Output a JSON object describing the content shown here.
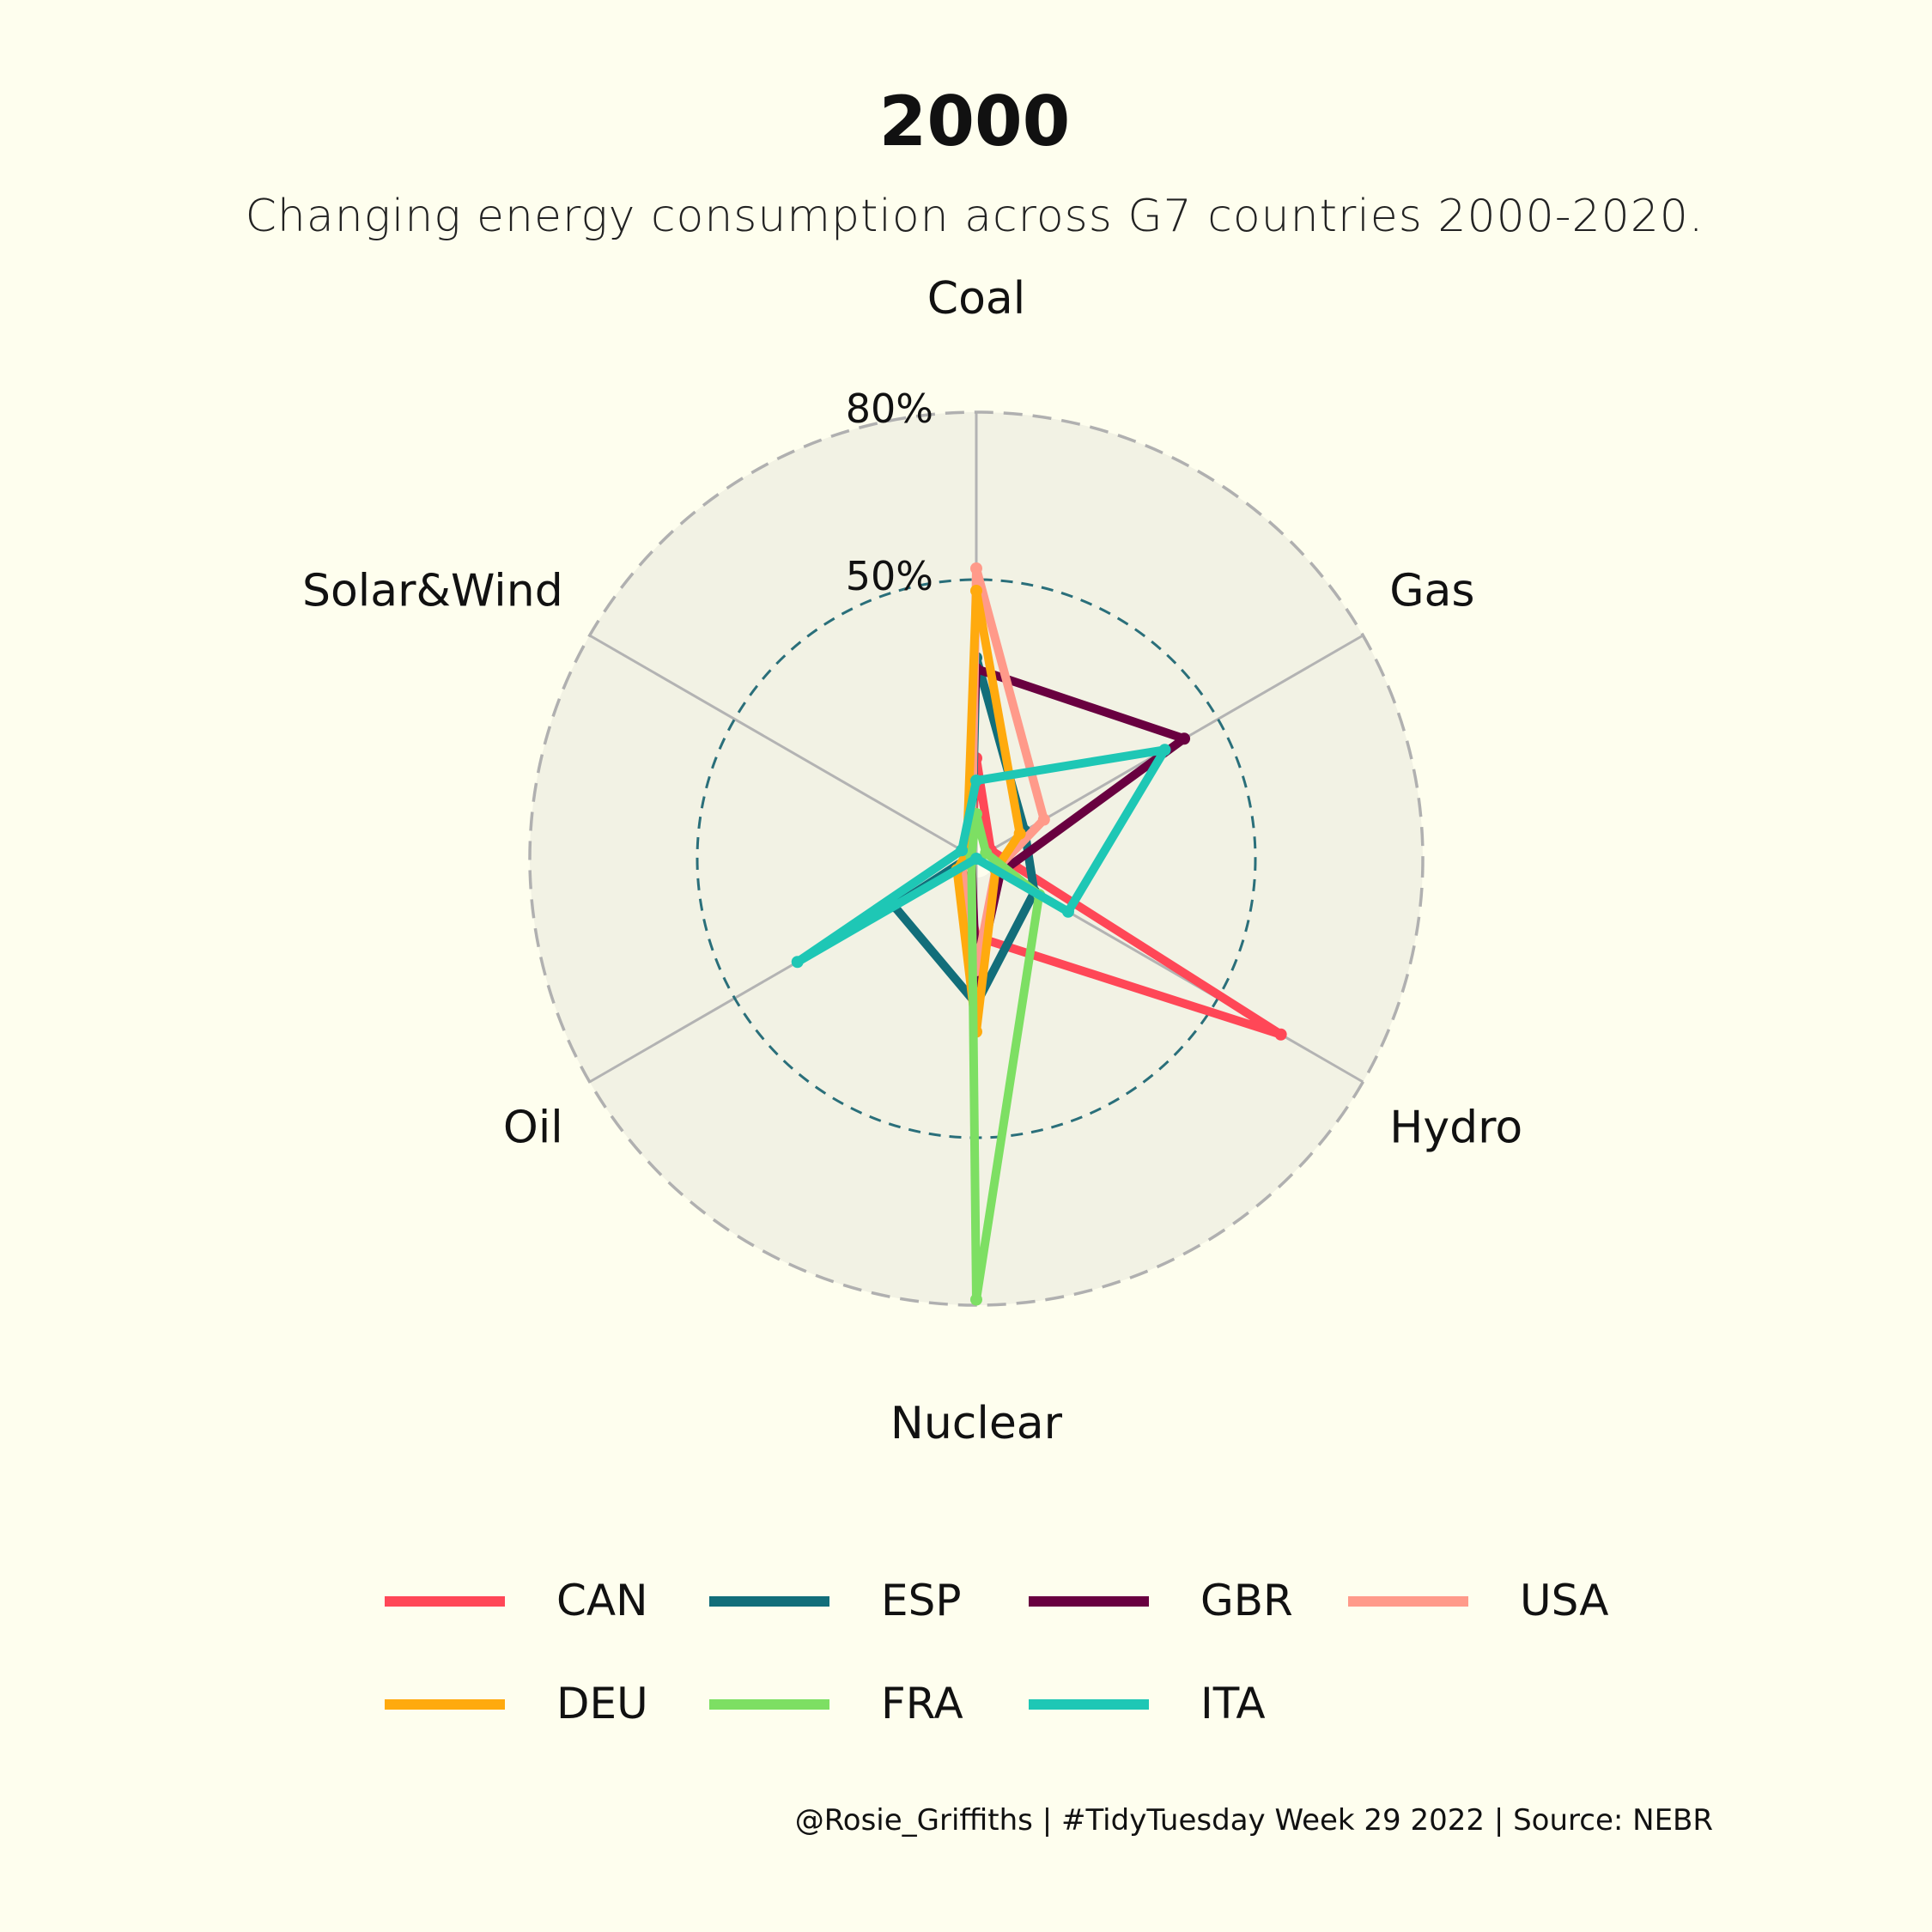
{
  "title": "2000",
  "subtitle": "Changing energy consumption across G7 countries 2000-2020.",
  "caption": "@Rosie_Griffiths | #TidyTuesday Week 29 2022 | Source: NEBR",
  "chart_data": {
    "type": "radar",
    "axes": [
      "Coal",
      "Gas",
      "Hydro",
      "Nuclear",
      "Oil",
      "Solar&Wind"
    ],
    "rmax": 80,
    "grid_rings": [
      {
        "value": 50,
        "label": "50%",
        "style": "teal-dashed"
      },
      {
        "value": 80,
        "label": "80%",
        "style": "grey-dashed"
      }
    ],
    "series": [
      {
        "name": "CAN",
        "color": "#ff4757",
        "values": [
          18,
          3,
          63,
          14,
          3,
          1
        ]
      },
      {
        "name": "ESP",
        "color": "#126e7a",
        "values": [
          36,
          10,
          12,
          26,
          17,
          1
        ]
      },
      {
        "name": "GBR",
        "color": "#690040",
        "values": [
          34,
          43,
          5,
          22,
          1,
          2
        ]
      },
      {
        "name": "USA",
        "color": "#ff9a8a",
        "values": [
          52,
          14,
          4,
          20,
          3,
          1
        ]
      },
      {
        "name": "DEU",
        "color": "#ffaa0e",
        "values": [
          48,
          9,
          4,
          31,
          4,
          2
        ]
      },
      {
        "name": "FRA",
        "color": "#7ddf63",
        "values": [
          8,
          2,
          13,
          79,
          1,
          1
        ]
      },
      {
        "name": "ITA",
        "color": "#1ec7b5",
        "values": [
          14,
          39,
          19,
          0,
          37,
          3
        ]
      }
    ]
  }
}
